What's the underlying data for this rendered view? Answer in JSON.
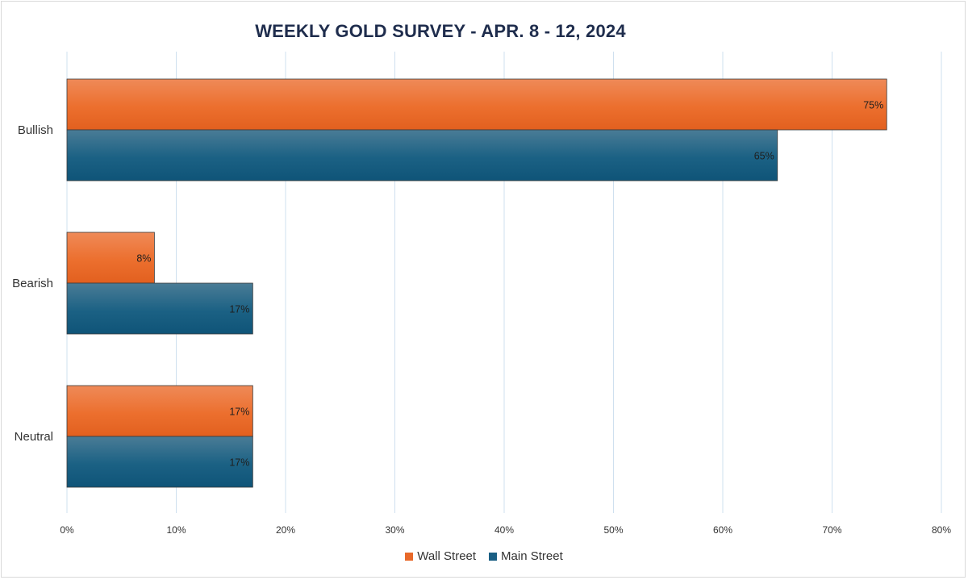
{
  "chart_data": {
    "type": "bar",
    "orientation": "horizontal",
    "title": "WEEKLY GOLD SURVEY - APR. 8 - 12, 2024",
    "categories": [
      "Bullish",
      "Bearish",
      "Neutral"
    ],
    "series": [
      {
        "name": "Wall Street",
        "values": [
          75,
          8,
          17
        ],
        "labels": [
          "75%",
          "8%",
          "17%"
        ],
        "color": "#e8692a"
      },
      {
        "name": "Main Street",
        "values": [
          65,
          17,
          17
        ],
        "labels": [
          "65%",
          "17%",
          "17%"
        ],
        "color": "#1a5f84"
      }
    ],
    "xlim": [
      0,
      80
    ],
    "x_ticks": [
      0,
      10,
      20,
      30,
      40,
      50,
      60,
      70,
      80
    ],
    "x_tick_labels": [
      "0%",
      "10%",
      "20%",
      "30%",
      "40%",
      "50%",
      "60%",
      "70%",
      "80%"
    ],
    "grid": true,
    "legend_position": "bottom"
  }
}
